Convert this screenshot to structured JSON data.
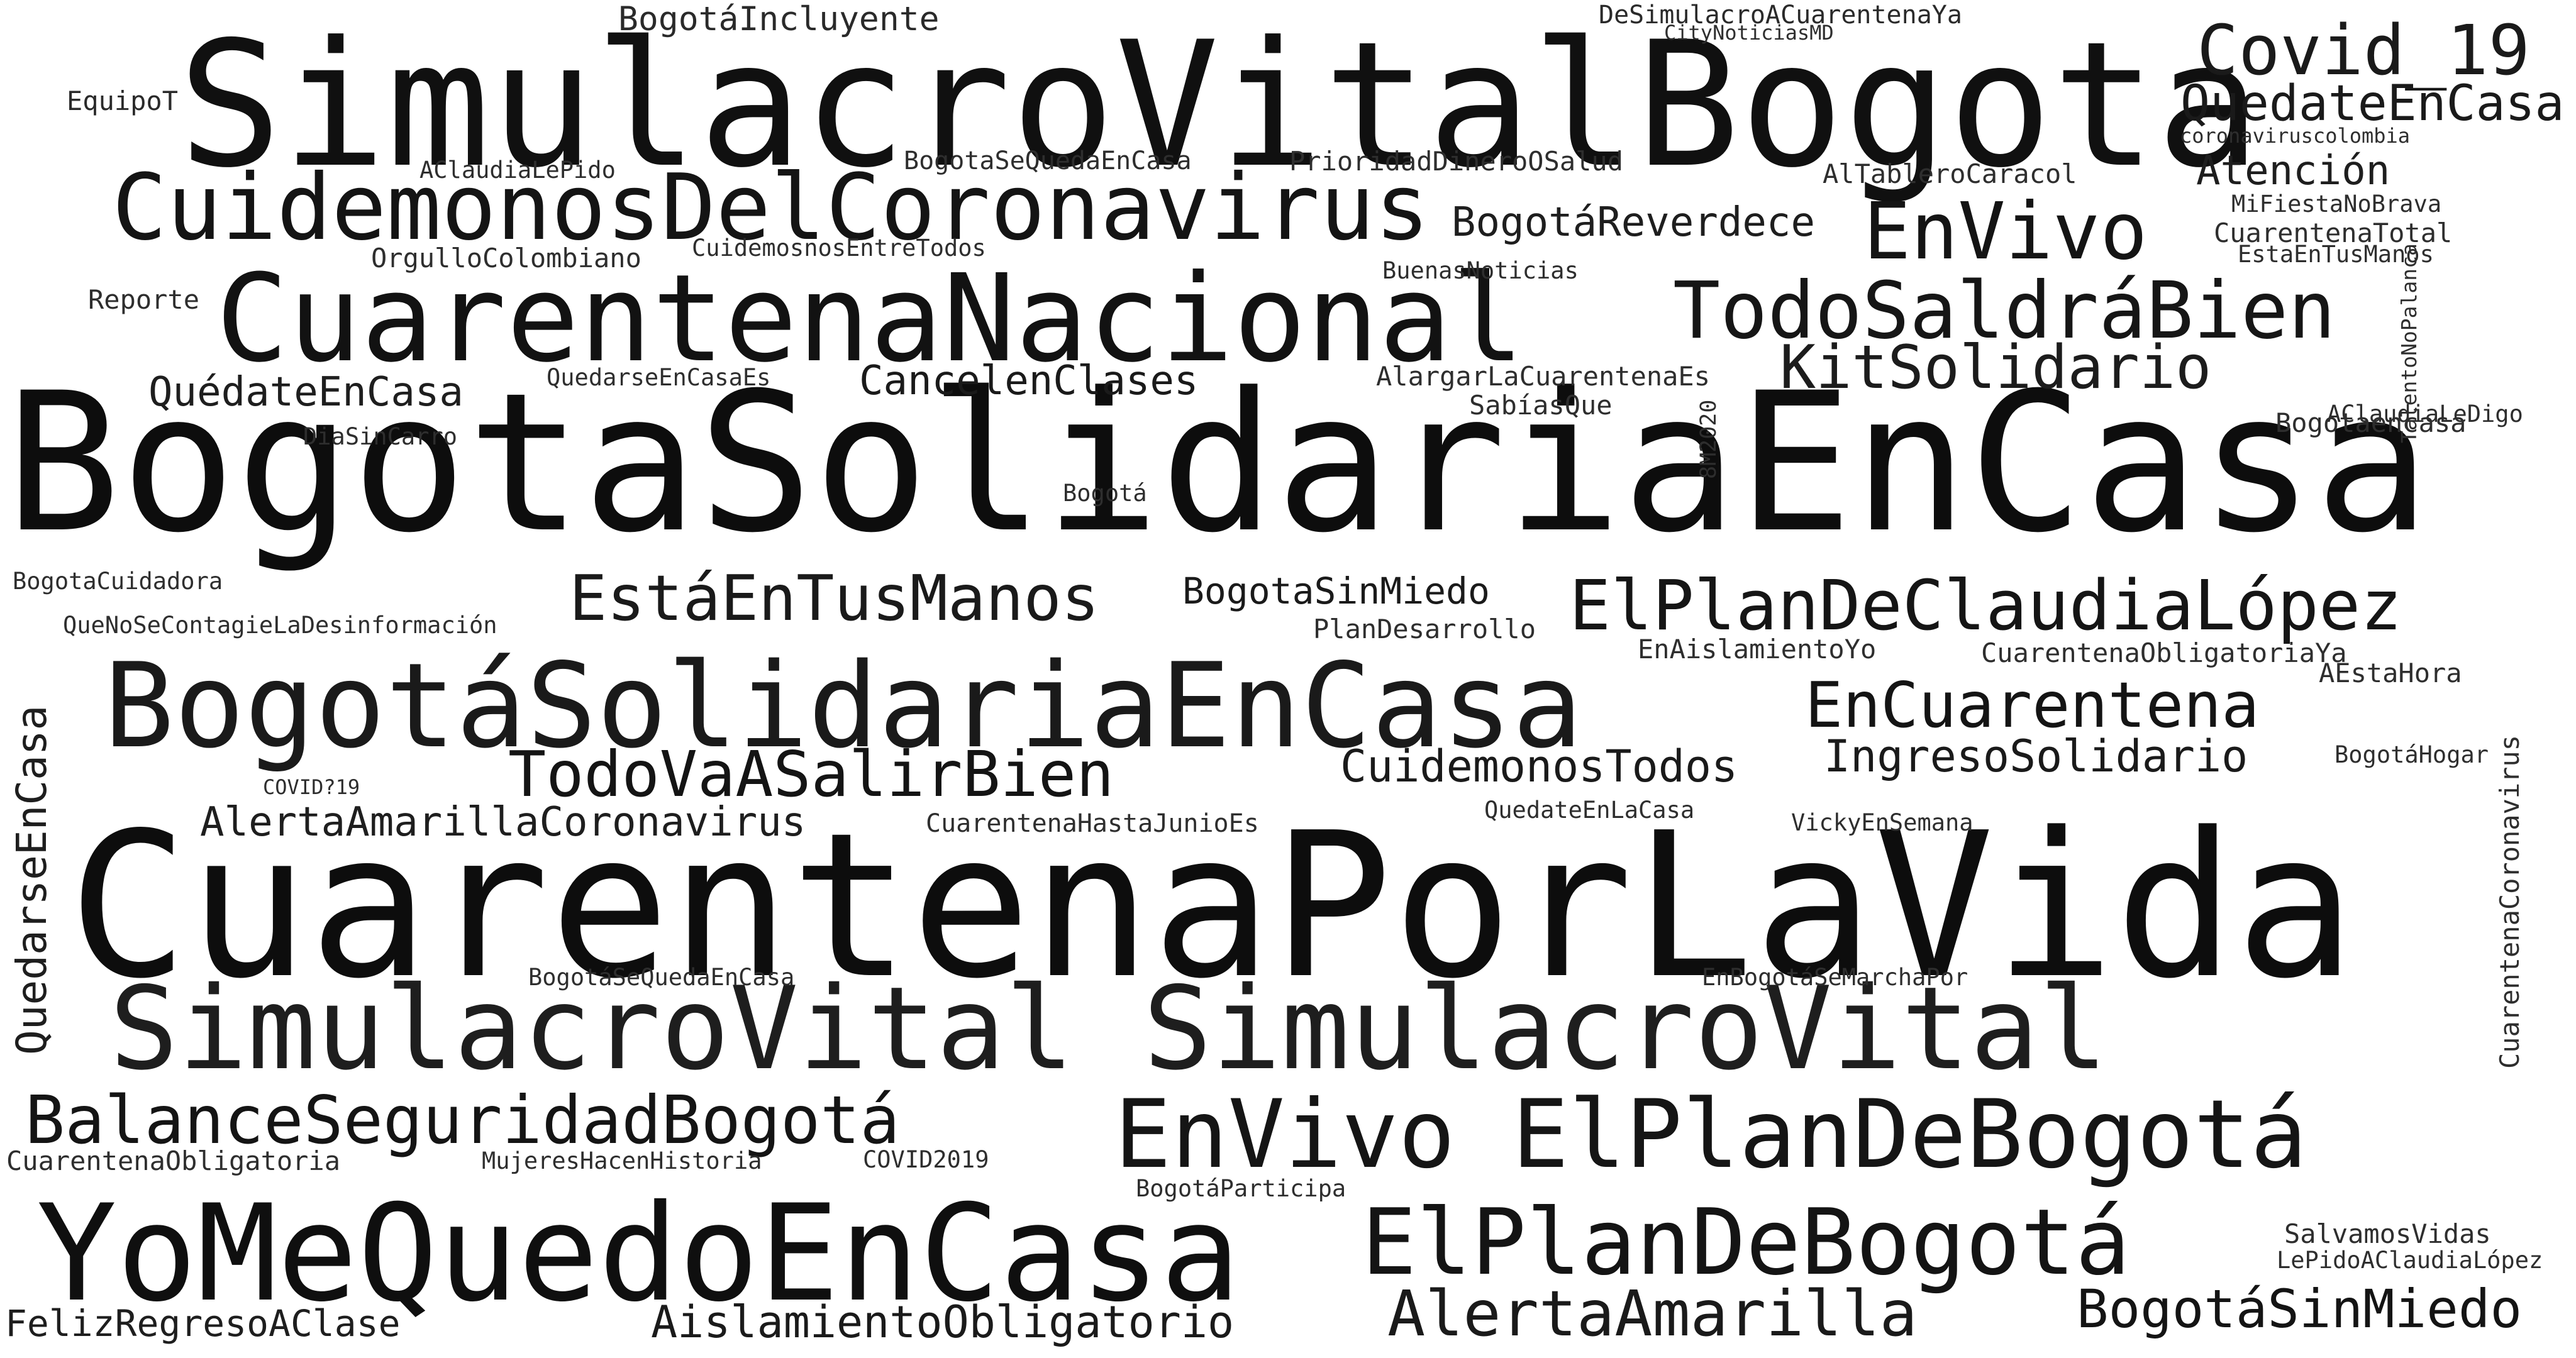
{
  "words": {
    "w1": "SimulacroVitalBogota",
    "w2": "BogotaSolidariaEnCasa",
    "w3": "CuarentenaPorLaVida",
    "w4": "CuarentenaNacional",
    "w5": "CuidemonosDelCoronavirus",
    "w6": "BogotáSolidariaEnCasa",
    "w7": "SimulacroVital SimulacroVital",
    "w8": "YoMeQuedoEnCasa",
    "w9": "EnVivo ElPlanDeBogotá",
    "w10": "ElPlanDeBogotá",
    "w11": "TodoSaldráBien",
    "w12": "EnVivo",
    "w13": "Covid_19",
    "w14": "QuedateEnCasa",
    "w15": "KitSolidario",
    "w16": "ElPlanDeClaudiaLópez",
    "w17": "EstáEnTusManos",
    "w18": "BalanceSeguridadBogotá",
    "w19": "TodoVaASalirBien",
    "w20": "EnCuarentena",
    "w21": "AlertaAmarilla",
    "w22": "BogotáSinMiedo",
    "w23": "AislamientoObligatorio",
    "w24": "IngresoSolidario",
    "w25": "CuidemonosTodos",
    "w26": "AlertaAmarillaCoronavirus",
    "w27": "BogotaSinMiedo",
    "w28": "CancelenClases",
    "w29": "QuédateEnCasa",
    "w30": "BogotáReverdece",
    "w31": "Atención",
    "w32": "BogotáIncluyente",
    "w33": "DeSimulacroACuarentenaYa",
    "w34": "CityNoticiasMD",
    "w35": "coronaviruscolombia",
    "w36": "EquipoT",
    "w37": "AClaudiaLePido",
    "w38": "BogotaSeQuedaEnCasa",
    "w39": "PrioridadDineroOSalud",
    "w40": "AlTableroCaracol",
    "w41": "MiFiestaNoBrava",
    "w42": "CuarentenaTotal",
    "w43": "EstaEnTusManos",
    "w44": "OrgulloColombiano",
    "w45": "CuidemosnosEntreTodos",
    "w46": "BuenasNoticias",
    "w47": "Reporte",
    "w48": "QuedarseEnCasaEs",
    "w49": "AlargarLaCuarentenaEs",
    "w50": "SabíasQue",
    "w51": "AClaudiaLeDigo",
    "w52": "DiaSinCarro",
    "w53": "Bogotaencasa",
    "w54": "Bogotá",
    "w55": "BogotaCuidadora",
    "w56": "QueNoSeContagieLaDesinformación",
    "w57": "PlanDesarrollo",
    "w58": "EnAislamientoYo",
    "w59": "CuarentenaObligatoriaYa",
    "w60": "AEstaHora",
    "w61": "COVID?19",
    "w62": "BogotáHogar",
    "w63": "CuarentenaHastaJunioEs",
    "w64": "QuedateEnLaCasa",
    "w65": "VickyEnSemana",
    "w66": "BogotáSeQuedaEnCasa",
    "w67": "EnBogotáSeMarchaPor",
    "w68": "CuarentenaObligatoria",
    "w69": "MujeresHacenHistoria",
    "w70": "COVID2019",
    "w71": "BogotáParticipa",
    "w72": "SalvamosVidas",
    "w73": "LePidoAClaudiaLópez",
    "w74": "FelizRegresoAClase",
    "v1": "TalentoNoPalanca",
    "v2": "8M2020",
    "v3": "QuedarseEnCasa",
    "v4": "CuarentenaCoronavirus"
  }
}
